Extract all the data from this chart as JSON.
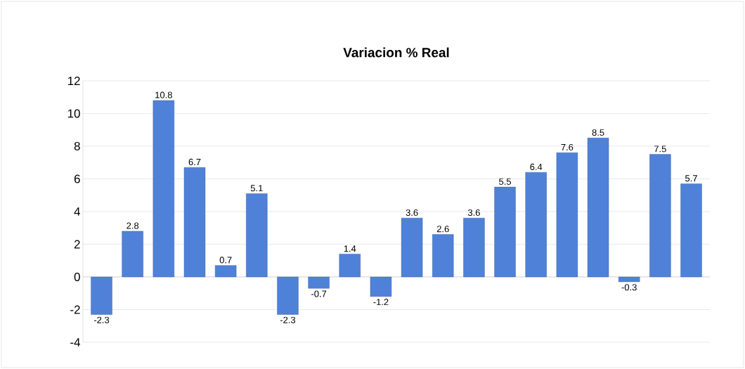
{
  "chart_data": {
    "type": "bar",
    "title": "Variacion % Real",
    "categories": [
      null,
      null,
      null,
      null,
      null,
      null,
      null,
      null,
      null,
      null,
      null,
      null,
      null,
      null,
      null,
      null,
      null,
      null,
      null,
      null
    ],
    "values": [
      -2.3,
      2.8,
      10.8,
      6.7,
      0.7,
      5.1,
      -2.3,
      -0.7,
      1.4,
      -1.2,
      3.6,
      2.6,
      3.6,
      5.5,
      6.4,
      7.6,
      8.5,
      -0.3,
      7.5,
      5.7
    ],
    "color": "#4f81d8",
    "ylim": [
      -4,
      12
    ],
    "yticks": [
      -4,
      -2,
      0,
      2,
      4,
      6,
      8,
      10,
      12
    ],
    "grid": "y",
    "data_labels": true
  }
}
